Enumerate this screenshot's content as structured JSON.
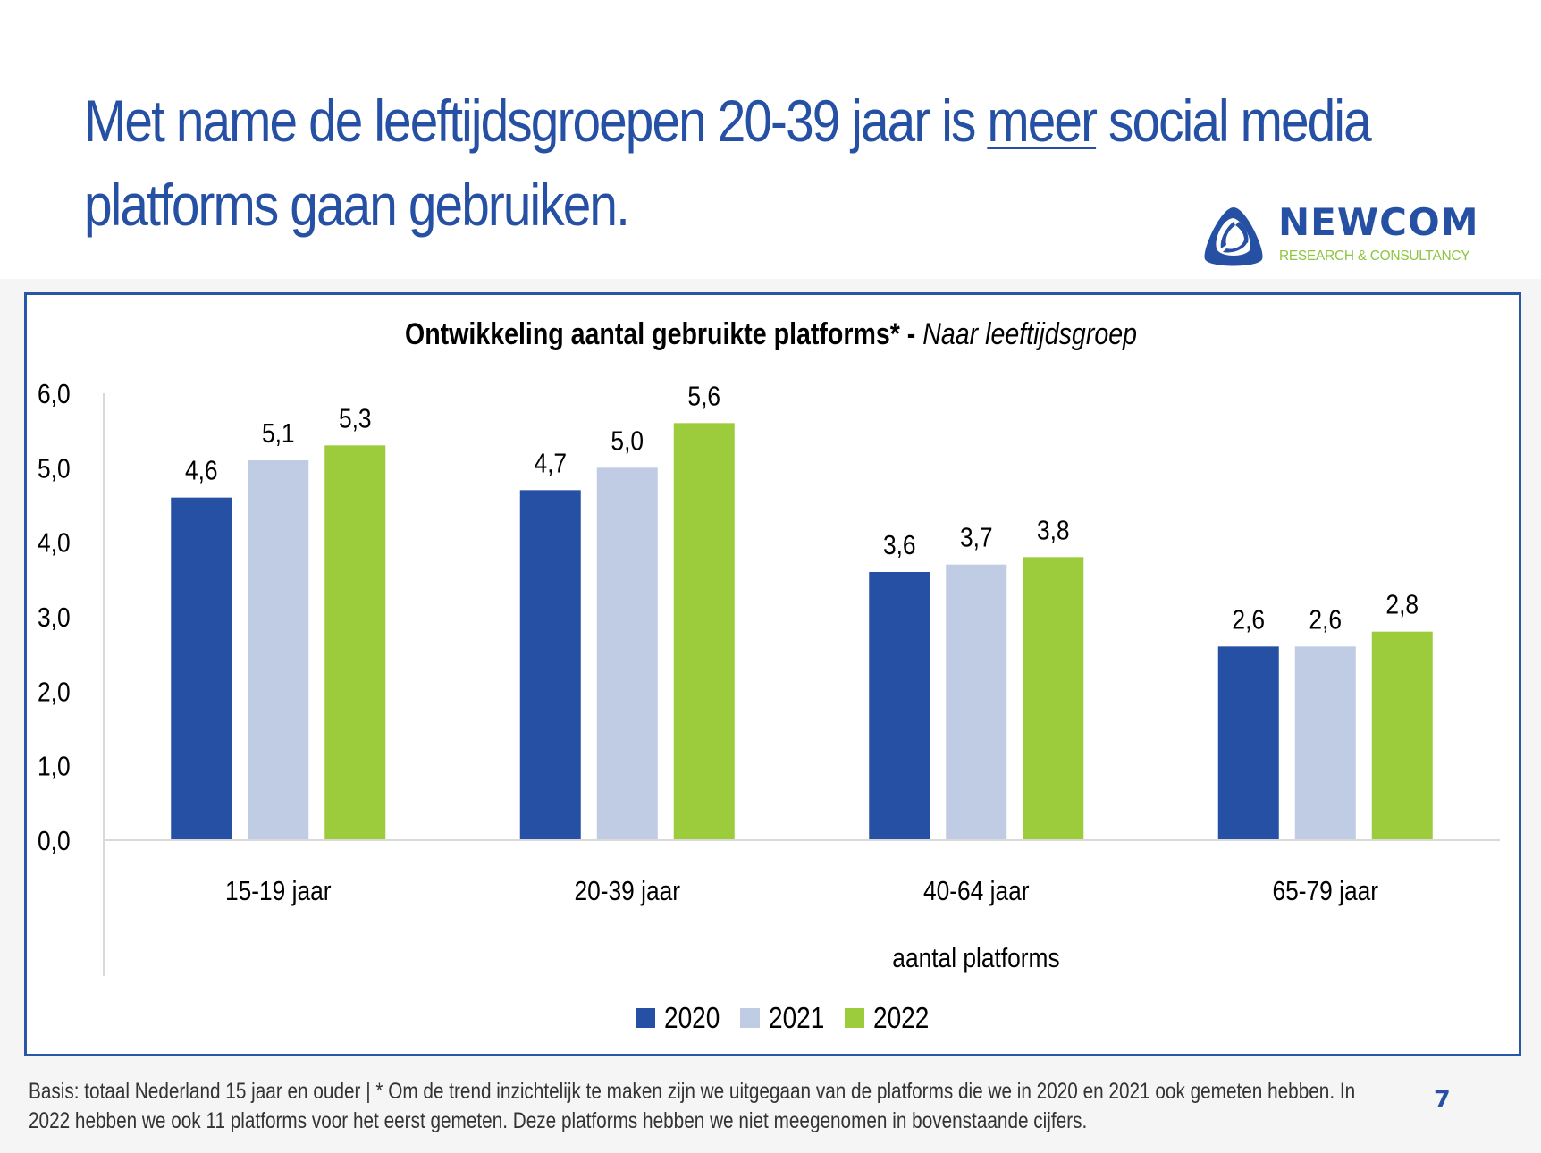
{
  "slide": {
    "title_part1": "Met name de leeftijdsgroepen 20-39 jaar is ",
    "title_underlined": "meer",
    "title_part2": " social media",
    "title_line2": "platforms gaan gebruiken.",
    "page_number": "7",
    "footnote_line1": "Basis: totaal Nederland 15 jaar en ouder | * Om de trend inzichtelijk te maken zijn we uitgegaan van de platforms die we in 2020 en 2021 ook gemeten hebben. In",
    "footnote_line2": "2022 hebben we ook 11 platforms voor het eerst gemeten. Deze platforms hebben we niet meegenomen in bovenstaande cijfers."
  },
  "logo": {
    "name": "NEWCOM",
    "subtitle": "RESEARCH & CONSULTANCY",
    "icon": "triangle-swirl-logo-icon",
    "primary_color": "#2550a3",
    "secondary_color": "#8dc63f"
  },
  "chart_data": {
    "type": "bar",
    "title_bold": "Ontwikkeling aantal gebruikte platforms* - ",
    "title_italic": "Naar leeftijdsgroep",
    "xlabel": "aantal platforms",
    "ylabel": "",
    "categories": [
      "15-19 jaar",
      "20-39 jaar",
      "40-64 jaar",
      "65-79 jaar"
    ],
    "series": [
      {
        "name": "2020",
        "color": "#2550a3",
        "values": [
          4.6,
          4.7,
          3.6,
          2.6
        ],
        "labels": [
          "4,6",
          "4,7",
          "3,6",
          "2,6"
        ]
      },
      {
        "name": "2021",
        "color": "#bfcce3",
        "values": [
          5.1,
          5.0,
          3.7,
          2.6
        ],
        "labels": [
          "5,1",
          "5,0",
          "3,7",
          "2,6"
        ]
      },
      {
        "name": "2022",
        "color": "#9ccb3b",
        "values": [
          5.3,
          5.6,
          3.8,
          2.8
        ],
        "labels": [
          "5,3",
          "5,6",
          "3,8",
          "2,8"
        ]
      }
    ],
    "ylim": [
      0,
      6
    ],
    "yticks": [
      0,
      1,
      2,
      3,
      4,
      5,
      6
    ],
    "ytick_labels": [
      "0,0",
      "1,0",
      "2,0",
      "3,0",
      "4,0",
      "5,0",
      "6,0"
    ],
    "grid": false,
    "legend": "bottom-center"
  }
}
